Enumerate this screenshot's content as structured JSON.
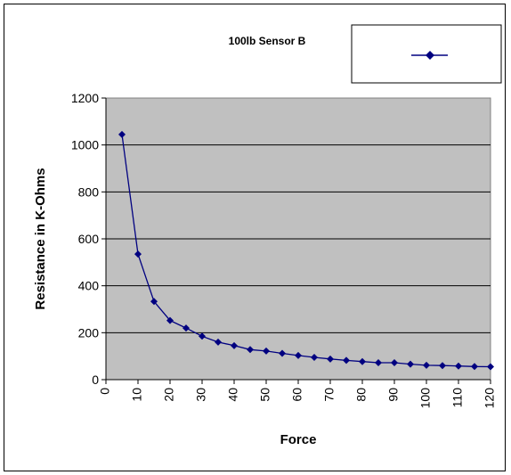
{
  "chart_data": {
    "type": "line",
    "title": "100lb Sensor B",
    "xlabel": "Force",
    "ylabel": "Resistance in K-Ohms",
    "xlim": [
      0,
      120
    ],
    "ylim": [
      0,
      1200
    ],
    "x_ticks": [
      "0",
      "10",
      "20",
      "30",
      "40",
      "50",
      "60",
      "70",
      "80",
      "90",
      "100",
      "110",
      "120"
    ],
    "y_ticks": [
      "0",
      "200",
      "400",
      "600",
      "800",
      "1000",
      "1200"
    ],
    "grid": "horizontal",
    "legend_placement": "top-right",
    "plot_background": "#c0c0c0",
    "series_color": "#000080",
    "marker": "diamond",
    "series": [
      {
        "x": [
          5,
          10,
          15,
          20,
          25,
          30,
          35,
          40,
          45,
          50,
          55,
          60,
          65,
          70,
          75,
          80,
          85,
          90,
          95,
          100,
          105,
          110,
          115,
          120
        ],
        "y": [
          1045,
          535,
          333,
          252,
          220,
          185,
          160,
          145,
          128,
          122,
          112,
          103,
          95,
          88,
          82,
          77,
          72,
          72,
          66,
          61,
          60,
          58,
          56,
          55
        ]
      }
    ]
  }
}
